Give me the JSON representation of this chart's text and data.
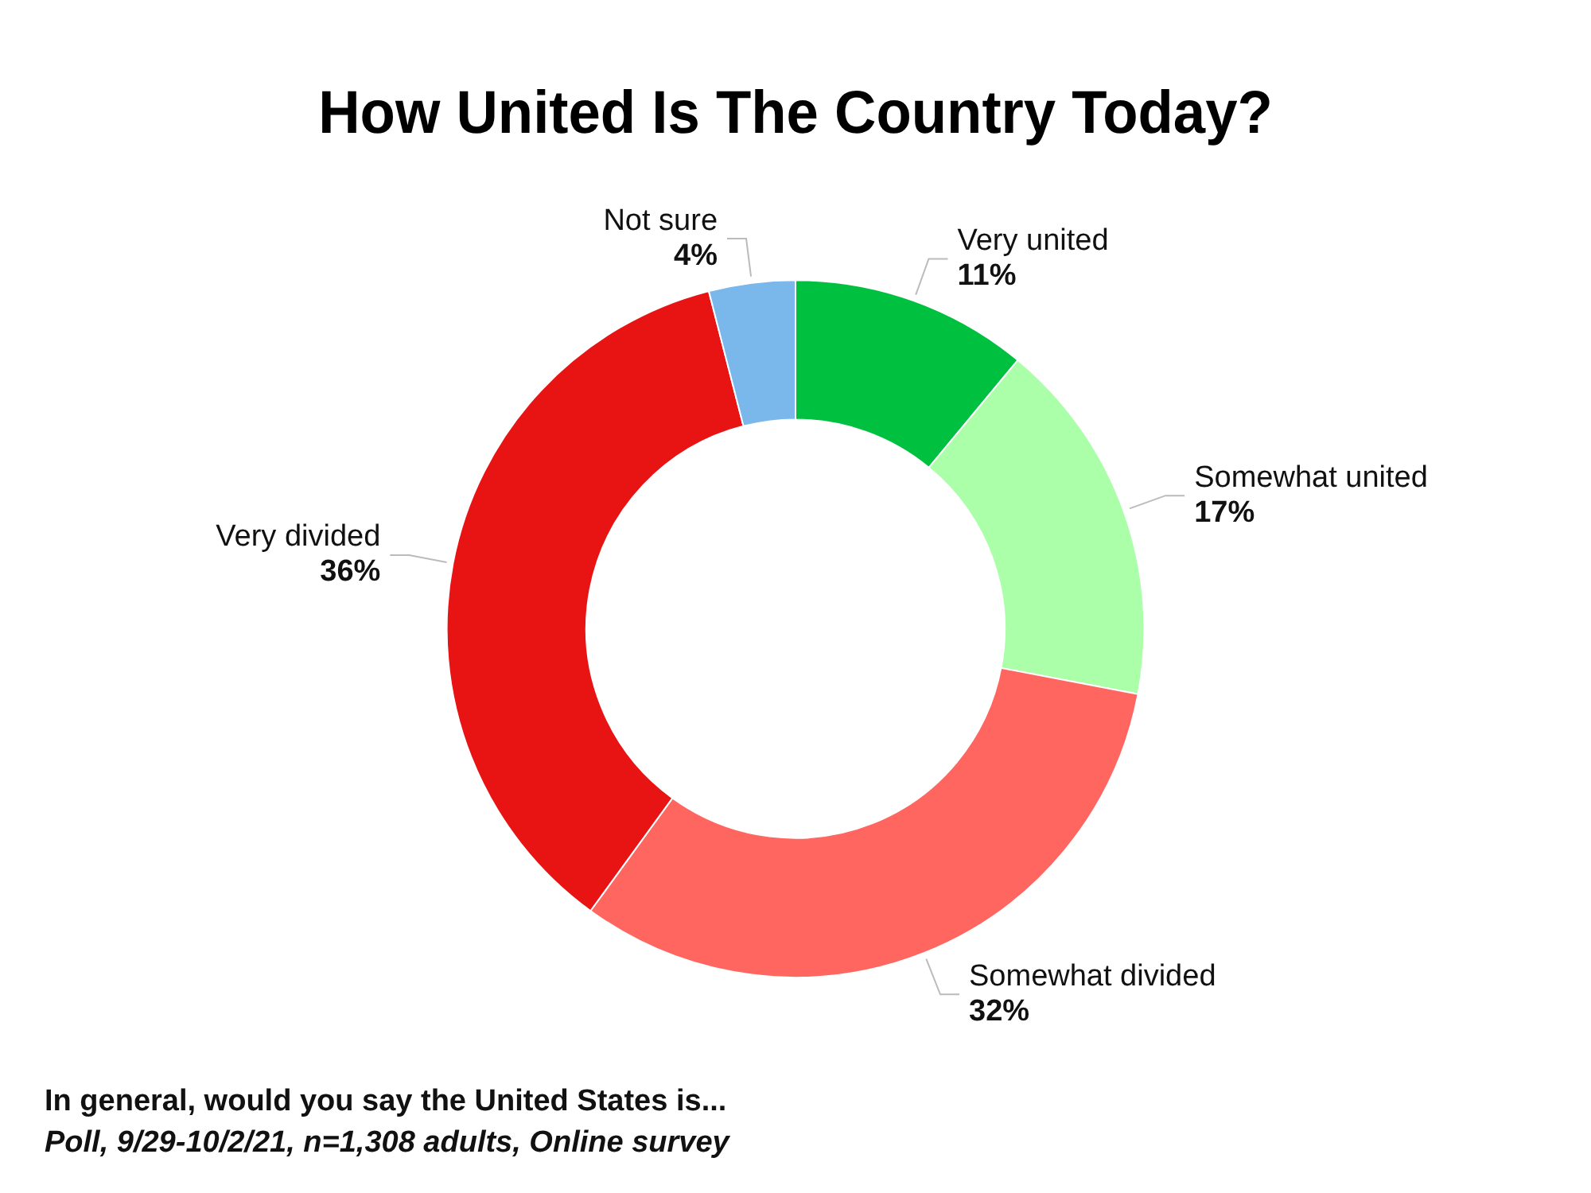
{
  "chart_data": {
    "type": "donut",
    "title": "How United Is The Country Today?",
    "categories": [
      "Very united",
      "Somewhat united",
      "Somewhat divided",
      "Very divided",
      "Not sure"
    ],
    "values": [
      11,
      17,
      32,
      36,
      4
    ],
    "value_labels": [
      "11%",
      "17%",
      "32%",
      "36%",
      "4%"
    ],
    "colors": [
      "#00c040",
      "#aaffa8",
      "#ff6660",
      "#e81414",
      "#7ab8ec"
    ],
    "legend": false,
    "annotations": [
      "In general, would you say the United States is...",
      "Poll, 9/29-10/2/21, n=1,308 adults, Online survey"
    ]
  }
}
